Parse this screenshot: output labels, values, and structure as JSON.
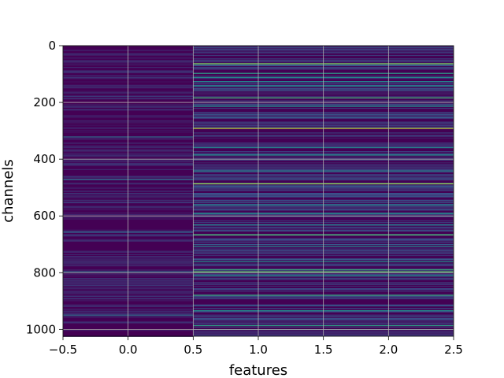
{
  "chart_data": {
    "type": "heatmap",
    "title": "",
    "xlabel": "features",
    "ylabel": "channels",
    "x_ticks": [
      "−0.5",
      "0.0",
      "0.5",
      "1.0",
      "1.5",
      "2.0",
      "2.5"
    ],
    "x_tick_values": [
      -0.5,
      0.0,
      0.5,
      1.0,
      1.5,
      2.0,
      2.5
    ],
    "y_ticks": [
      "0",
      "200",
      "400",
      "600",
      "800",
      "1000"
    ],
    "y_tick_values": [
      0,
      200,
      400,
      600,
      800,
      1000
    ],
    "xlim": [
      -0.5,
      2.5
    ],
    "ylim": [
      1024,
      0
    ],
    "n_rows": 1024,
    "n_cols": 3,
    "grid": true,
    "colormap": "viridis",
    "background_color": "#440154",
    "column_0_highlight_rows": [
      320,
      470,
      655,
      795,
      948
    ],
    "column_12_bright_rows": [
      62,
      96,
      110,
      125,
      140,
      182,
      212,
      290,
      358,
      384,
      440,
      485,
      560,
      590,
      630,
      665,
      705,
      760,
      788,
      795,
      808,
      878,
      932,
      985
    ],
    "column_12_bright_levels": [
      0.8,
      0.55,
      0.5,
      0.45,
      0.5,
      0.65,
      0.5,
      0.9,
      0.45,
      0.5,
      0.45,
      0.85,
      0.45,
      0.5,
      0.45,
      0.7,
      0.45,
      0.5,
      0.6,
      0.75,
      0.5,
      0.6,
      0.5,
      0.55
    ]
  }
}
